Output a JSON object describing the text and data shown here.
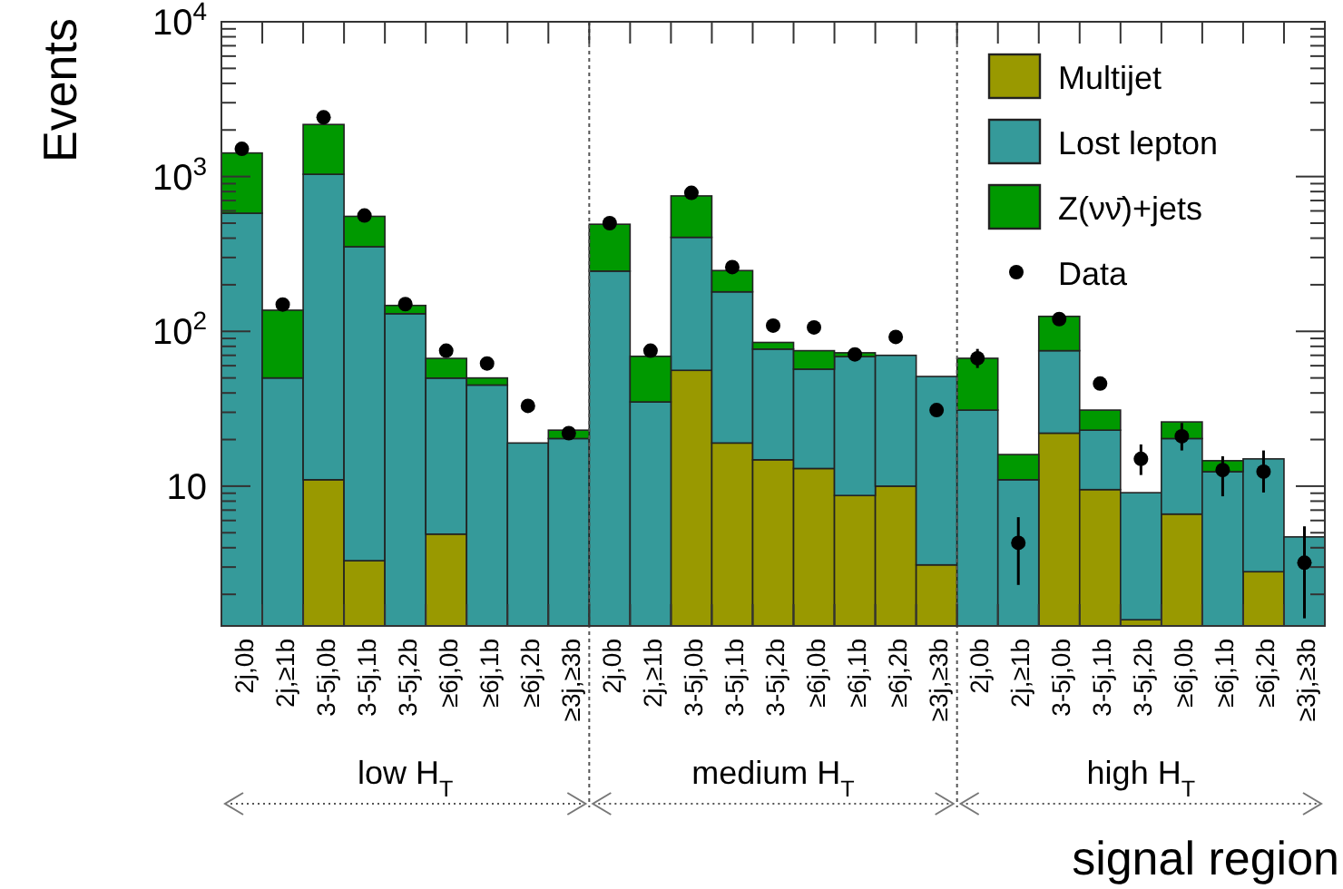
{
  "chart_data": {
    "type": "bar",
    "stacked": true,
    "xlabel": "signal region",
    "ylabel": "Events",
    "log": true,
    "legend": "top right",
    "categories": [
      "2j,0b",
      "2j,≥1b",
      "3-5j,0b",
      "3-5j,1b",
      "3-5j,2b",
      "≥6j,0b",
      "≥6j,1b",
      "≥6j,2b",
      "≥3j,≥3b",
      "2j,0b",
      "2j,≥1b",
      "3-5j,0b",
      "3-5j,1b",
      "3-5j,2b",
      "≥6j,0b",
      "≥6j,1b",
      "≥6j,2b",
      "≥3j,≥3b",
      "2j,0b",
      "2j,≥1b",
      "3-5j,0b",
      "3-5j,1b",
      "3-5j,2b",
      "≥6j,0b",
      "≥6j,1b",
      "≥6j,2b",
      "≥3j,≥3b"
    ],
    "ylim": [
      1.25,
      10000
    ],
    "yticks": [
      {
        "value": 2,
        "label": null
      },
      {
        "value": 3,
        "label": null
      },
      {
        "value": 4,
        "label": null
      },
      {
        "value": 5,
        "label": null
      },
      {
        "value": 6,
        "label": null
      },
      {
        "value": 7,
        "label": null
      },
      {
        "value": 8,
        "label": null
      },
      {
        "value": 9,
        "label": null
      },
      {
        "value": 10,
        "label": "10"
      },
      {
        "value": 20,
        "label": null
      },
      {
        "value": 30,
        "label": null
      },
      {
        "value": 40,
        "label": null
      },
      {
        "value": 50,
        "label": null
      },
      {
        "value": 60,
        "label": null
      },
      {
        "value": 70,
        "label": null
      },
      {
        "value": 80,
        "label": null
      },
      {
        "value": 90,
        "label": null
      },
      {
        "value": 100,
        "label": "10$^{2}$"
      },
      {
        "value": 200,
        "label": null
      },
      {
        "value": 300,
        "label": null
      },
      {
        "value": 400,
        "label": null
      },
      {
        "value": 500,
        "label": null
      },
      {
        "value": 600,
        "label": null
      },
      {
        "value": 700,
        "label": null
      },
      {
        "value": 800,
        "label": null
      },
      {
        "value": 900,
        "label": null
      },
      {
        "value": 1000,
        "label": "10$^{3}$"
      },
      {
        "value": 2000,
        "label": null
      },
      {
        "value": 3000,
        "label": null
      },
      {
        "value": 4000,
        "label": null
      },
      {
        "value": 5000,
        "label": null
      },
      {
        "value": 6000,
        "label": null
      },
      {
        "value": 7000,
        "label": null
      },
      {
        "value": 8000,
        "label": null
      },
      {
        "value": 9000,
        "label": null
      },
      {
        "value": 10000,
        "label": "10$^{4}$"
      }
    ],
    "series": [
      {
        "name": "Multijet",
        "color": "#999900",
        "values": [
          null,
          null,
          11,
          3.3,
          null,
          4.9,
          null,
          null,
          null,
          null,
          null,
          56,
          19,
          14.8,
          13,
          8.7,
          10,
          3.1,
          null,
          null,
          22,
          9.5,
          1.37,
          6.6,
          null,
          2.8,
          null
        ]
      },
      {
        "name": "Lost lepton",
        "color": "#359a9a",
        "values": [
          580,
          50,
          1024,
          349,
          130,
          45,
          45,
          19,
          20.3,
          245,
          35,
          349,
          161,
          62,
          44,
          60,
          60,
          48,
          31,
          11,
          53,
          13.5,
          7.7,
          13.7,
          12.4,
          12.2,
          4.7
        ]
      },
      {
        "name": "Z(νν̄)+jets",
        "color": "#009900",
        "values": [
          840,
          87,
          1135,
          201,
          17,
          17,
          5,
          null,
          2.7,
          247,
          34,
          345,
          67,
          8,
          18,
          4,
          null,
          null,
          36,
          5,
          50,
          8,
          null,
          5.7,
          2.2,
          null,
          null
        ]
      },
      {
        "name": "Data",
        "type": "scatter",
        "marker": "circle",
        "color": "#000000",
        "values": [
          1510,
          149,
          2415,
          560,
          150,
          75,
          62,
          33,
          22,
          500,
          75,
          785,
          260,
          109,
          106,
          71,
          92,
          31,
          67,
          4.3,
          120,
          46,
          15,
          21,
          12.7,
          12.4,
          3.2
        ],
        "errors": [
          null,
          null,
          null,
          null,
          null,
          null,
          null,
          null,
          null,
          null,
          null,
          null,
          null,
          null,
          null,
          null,
          null,
          null,
          [
            58,
            77
          ],
          [
            2.3,
            6.3
          ],
          null,
          null,
          [
            11.8,
            18.6
          ],
          [
            17,
            25.6
          ],
          [
            8.6,
            15.6
          ],
          [
            9.1,
            17
          ],
          [
            1.4,
            5.5
          ]
        ]
      }
    ],
    "annotations": [
      "low H$_{T}$",
      "medium H$_{T}$",
      "high H$_{T}$"
    ]
  }
}
